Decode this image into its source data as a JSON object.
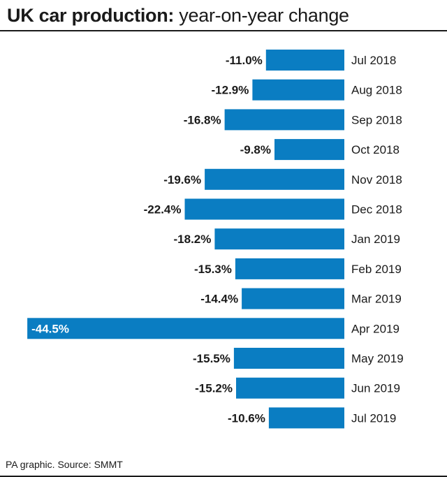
{
  "title": {
    "bold": "UK car production:",
    "rest": " year-on-year change"
  },
  "source": "PA graphic. Source: SMMT",
  "colors": {
    "bar": "#0a7dc2",
    "text": "#1a1a1a",
    "label_inside": "#ffffff"
  },
  "chart_data": {
    "type": "bar",
    "orientation": "horizontal",
    "title": "UK car production: year-on-year change",
    "xlabel": "",
    "ylabel": "",
    "unit": "%",
    "xlim": [
      -45,
      0
    ],
    "grid": false,
    "legend": "none",
    "categories": [
      "Jul 2018",
      "Aug 2018",
      "Sep 2018",
      "Oct 2018",
      "Nov 2018",
      "Dec 2018",
      "Jan 2019",
      "Feb 2019",
      "Mar 2019",
      "Apr 2019",
      "May 2019",
      "Jun 2019",
      "Jul 2019"
    ],
    "values": [
      -11.0,
      -12.9,
      -16.8,
      -9.8,
      -19.6,
      -22.4,
      -18.2,
      -15.3,
      -14.4,
      -44.5,
      -15.5,
      -15.2,
      -10.6
    ],
    "labels": [
      "-11.0%",
      "-12.9%",
      "-16.8%",
      "-9.8%",
      "-19.6%",
      "-22.4%",
      "-18.2%",
      "-15.3%",
      "-14.4%",
      "-44.5%",
      "-15.5%",
      "-15.2%",
      "-10.6%"
    ]
  }
}
